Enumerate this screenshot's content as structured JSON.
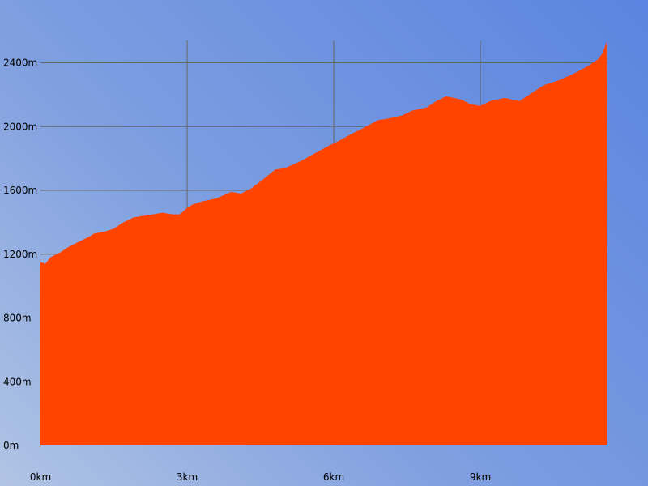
{
  "chart_data": {
    "type": "area",
    "title": "",
    "xlabel": "",
    "ylabel": "",
    "xlim": [
      0,
      11.6
    ],
    "ylim": [
      0,
      2540
    ],
    "grid": true,
    "legend": "none",
    "x_ticks": [
      0,
      3,
      6,
      9
    ],
    "x_tick_labels": [
      "0km",
      "3km",
      "6km",
      "9km"
    ],
    "y_ticks": [
      0,
      400,
      800,
      1200,
      1600,
      2000,
      2400
    ],
    "y_tick_labels": [
      "0m",
      "400m",
      "800m",
      "1200m",
      "1600m",
      "2000m",
      "2400m"
    ],
    "series": [
      {
        "color": "#ff4400",
        "x": [
          0,
          0.1,
          0.2,
          0.4,
          0.6,
          0.8,
          1.0,
          1.1,
          1.3,
          1.5,
          1.7,
          1.9,
          2.1,
          2.3,
          2.5,
          2.7,
          2.85,
          3.0,
          3.1,
          3.3,
          3.6,
          3.9,
          4.1,
          4.3,
          4.6,
          4.8,
          5.0,
          5.3,
          5.6,
          5.9,
          6.1,
          6.4,
          6.6,
          6.9,
          7.1,
          7.4,
          7.6,
          7.9,
          8.1,
          8.3,
          8.6,
          8.8,
          9.0,
          9.2,
          9.5,
          9.8,
          10.0,
          10.3,
          10.6,
          10.9,
          11.2,
          11.4,
          11.5,
          11.58,
          11.6
        ],
        "values": [
          1150,
          1140,
          1180,
          1210,
          1250,
          1280,
          1310,
          1330,
          1340,
          1360,
          1400,
          1430,
          1440,
          1450,
          1460,
          1450,
          1450,
          1490,
          1510,
          1530,
          1550,
          1590,
          1580,
          1610,
          1680,
          1730,
          1740,
          1780,
          1830,
          1880,
          1910,
          1960,
          1990,
          2040,
          2050,
          2070,
          2100,
          2120,
          2160,
          2190,
          2170,
          2140,
          2130,
          2160,
          2180,
          2160,
          2200,
          2260,
          2290,
          2330,
          2380,
          2420,
          2460,
          2530,
          1270
        ]
      }
    ]
  }
}
